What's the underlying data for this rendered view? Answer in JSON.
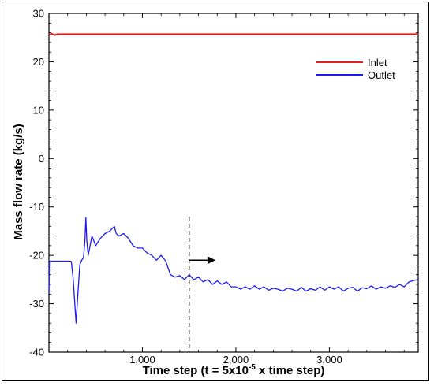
{
  "chart_data": {
    "type": "line",
    "xlabel": "Time step (t = 5x10",
    "xlabel_superscript": "-5",
    "xlabel_suffix": " x time step)",
    "ylabel": "Mass flow rate (kg/s)",
    "xlim": [
      0,
      3950
    ],
    "ylim": [
      -40,
      30
    ],
    "x_ticks": [
      1000,
      2000,
      3000
    ],
    "x_tick_labels": [
      "1,000",
      "2,000",
      "3,000"
    ],
    "y_ticks": [
      -40,
      -30,
      -20,
      -10,
      0,
      10,
      20,
      30
    ],
    "y_tick_labels": [
      "-40",
      "-30",
      "-20",
      "-10",
      "0",
      "10",
      "20",
      "30"
    ],
    "grid": false,
    "legend_position": "top-right",
    "series": [
      {
        "name": "Inlet",
        "color": "#e02020",
        "x": [
          0,
          30,
          60,
          90,
          3950
        ],
        "y": [
          25.6,
          25.8,
          25.5,
          25.7,
          25.7
        ]
      },
      {
        "name": "Outlet",
        "color": "#1c1cf0",
        "x": [
          0,
          5,
          10,
          230,
          240,
          260,
          290,
          310,
          330,
          350,
          370,
          385,
          395,
          405,
          420,
          440,
          460,
          500,
          550,
          600,
          650,
          700,
          720,
          750,
          800,
          850,
          900,
          950,
          1000,
          1050,
          1100,
          1150,
          1200,
          1250,
          1300,
          1350,
          1400,
          1450,
          1500,
          1550,
          1600,
          1650,
          1700,
          1750,
          1800,
          1850,
          1900,
          1950,
          2000,
          2050,
          2100,
          2150,
          2200,
          2250,
          2300,
          2350,
          2400,
          2450,
          2500,
          2550,
          2600,
          2650,
          2700,
          2750,
          2800,
          2850,
          2900,
          2950,
          3000,
          3050,
          3100,
          3150,
          3200,
          3250,
          3300,
          3350,
          3400,
          3450,
          3500,
          3550,
          3600,
          3650,
          3700,
          3750,
          3800,
          3850,
          3900,
          3950
        ],
        "y": [
          -28,
          -21.2,
          -21.2,
          -21.2,
          -21.3,
          -25,
          -34,
          -28,
          -22,
          -21,
          -20.5,
          -17,
          -12.2,
          -17,
          -20,
          -18,
          -16,
          -18,
          -16.5,
          -15.5,
          -15,
          -14,
          -15.5,
          -16,
          -15.5,
          -16.5,
          -18,
          -18.5,
          -18.5,
          -19.5,
          -20,
          -21,
          -20,
          -21.2,
          -24,
          -24.5,
          -24.2,
          -25,
          -24,
          -25,
          -24.5,
          -25.5,
          -25,
          -26,
          -25.3,
          -26,
          -25.5,
          -26.5,
          -26.5,
          -27,
          -26.5,
          -27,
          -26.3,
          -27,
          -26.5,
          -27.2,
          -26.8,
          -27,
          -27.4,
          -26.8,
          -27,
          -27.4,
          -26.6,
          -27.4,
          -26.9,
          -27.2,
          -26.5,
          -27.2,
          -26.5,
          -27,
          -26.5,
          -27.4,
          -26.8,
          -26.6,
          -27.4,
          -26.7,
          -26.9,
          -26.3,
          -27,
          -26.5,
          -26.8,
          -26.3,
          -26.6,
          -26,
          -26.5,
          -25.5,
          -25.2,
          -25
        ]
      }
    ],
    "annotations": {
      "vertical_dashed_line_x": 1500,
      "arrow": {
        "from": [
          1500,
          -21
        ],
        "to": [
          1780,
          -21
        ]
      }
    }
  }
}
